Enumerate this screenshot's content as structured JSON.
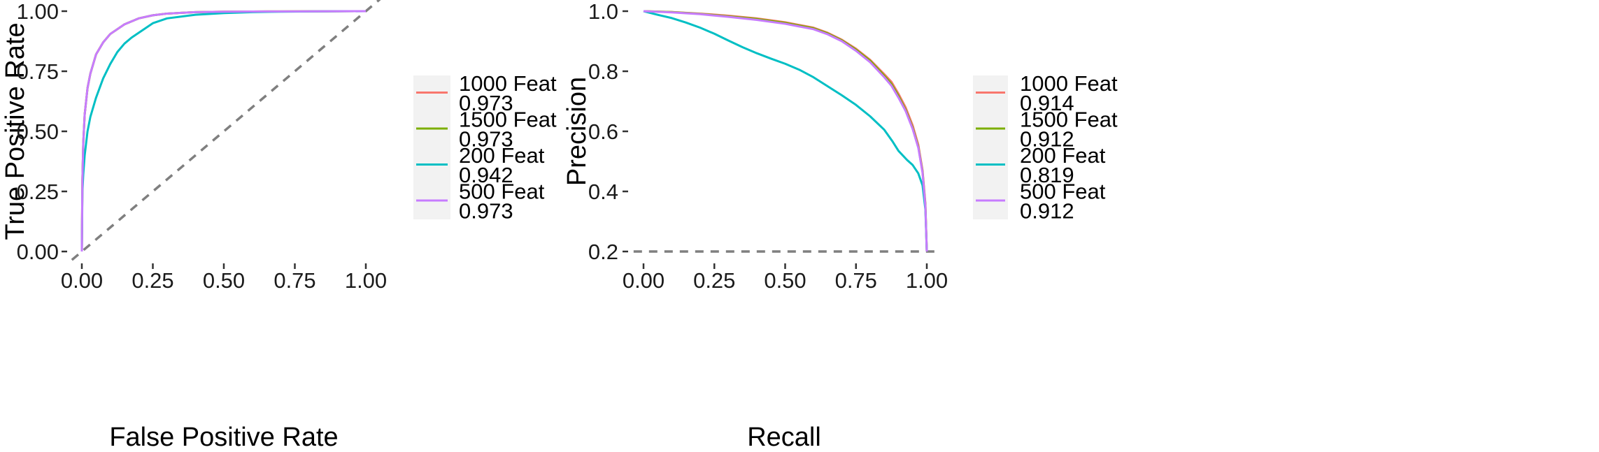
{
  "chart_data": [
    {
      "type": "line",
      "title": "",
      "xlabel": "False Positive Rate",
      "ylabel": "True Positive Rate",
      "xlim": [
        0,
        1
      ],
      "ylim": [
        0,
        1
      ],
      "x_ticks": [
        0,
        0.25,
        0.5,
        0.75,
        1
      ],
      "x_tick_labels": [
        "0.00",
        "0.25",
        "0.50",
        "0.75",
        "1.00"
      ],
      "y_ticks": [
        0,
        0.25,
        0.5,
        0.75,
        1
      ],
      "y_tick_labels": [
        "0.00",
        "0.25",
        "0.50",
        "0.75",
        "1.00"
      ],
      "grid": false,
      "legend_position": "right",
      "reference_line": {
        "style": "dashed",
        "color": "#7f7f7f",
        "points": [
          [
            -0.035,
            -0.035
          ],
          [
            1.05,
            1.05
          ]
        ]
      },
      "series": [
        {
          "name": "1000 Feat",
          "auc": "0.973",
          "color": "#f8766d",
          "points": [
            [
              0,
              0
            ],
            [
              0.002,
              0.3
            ],
            [
              0.005,
              0.45
            ],
            [
              0.01,
              0.57
            ],
            [
              0.02,
              0.68
            ],
            [
              0.03,
              0.74
            ],
            [
              0.05,
              0.82
            ],
            [
              0.075,
              0.87
            ],
            [
              0.1,
              0.905
            ],
            [
              0.15,
              0.945
            ],
            [
              0.2,
              0.97
            ],
            [
              0.25,
              0.983
            ],
            [
              0.3,
              0.99
            ],
            [
              0.4,
              0.996
            ],
            [
              0.5,
              0.998
            ],
            [
              0.7,
              0.999
            ],
            [
              1,
              1
            ]
          ]
        },
        {
          "name": "1500 Feat",
          "auc": "0.973",
          "color": "#7cae00",
          "points": [
            [
              0,
              0
            ],
            [
              0.002,
              0.3
            ],
            [
              0.005,
              0.45
            ],
            [
              0.01,
              0.57
            ],
            [
              0.02,
              0.68
            ],
            [
              0.03,
              0.74
            ],
            [
              0.05,
              0.82
            ],
            [
              0.075,
              0.87
            ],
            [
              0.1,
              0.905
            ],
            [
              0.15,
              0.945
            ],
            [
              0.2,
              0.97
            ],
            [
              0.25,
              0.983
            ],
            [
              0.3,
              0.99
            ],
            [
              0.4,
              0.996
            ],
            [
              0.5,
              0.998
            ],
            [
              0.7,
              0.999
            ],
            [
              1,
              1
            ]
          ]
        },
        {
          "name": "200 Feat",
          "auc": "0.942",
          "color": "#00bfc4",
          "points": [
            [
              0,
              0
            ],
            [
              0.002,
              0.25
            ],
            [
              0.005,
              0.32
            ],
            [
              0.01,
              0.4
            ],
            [
              0.02,
              0.5
            ],
            [
              0.03,
              0.56
            ],
            [
              0.05,
              0.64
            ],
            [
              0.075,
              0.72
            ],
            [
              0.1,
              0.78
            ],
            [
              0.125,
              0.83
            ],
            [
              0.15,
              0.865
            ],
            [
              0.175,
              0.89
            ],
            [
              0.2,
              0.91
            ],
            [
              0.25,
              0.95
            ],
            [
              0.3,
              0.97
            ],
            [
              0.4,
              0.985
            ],
            [
              0.5,
              0.992
            ],
            [
              0.6,
              0.996
            ],
            [
              0.7,
              0.998
            ],
            [
              0.8,
              0.999
            ],
            [
              1,
              1
            ]
          ]
        },
        {
          "name": "500 Feat",
          "auc": "0.973",
          "color": "#c77cff",
          "points": [
            [
              0,
              0
            ],
            [
              0.002,
              0.3
            ],
            [
              0.005,
              0.45
            ],
            [
              0.01,
              0.57
            ],
            [
              0.02,
              0.68
            ],
            [
              0.03,
              0.74
            ],
            [
              0.05,
              0.82
            ],
            [
              0.075,
              0.87
            ],
            [
              0.1,
              0.905
            ],
            [
              0.15,
              0.945
            ],
            [
              0.2,
              0.97
            ],
            [
              0.25,
              0.983
            ],
            [
              0.3,
              0.99
            ],
            [
              0.4,
              0.996
            ],
            [
              0.5,
              0.998
            ],
            [
              0.7,
              0.999
            ],
            [
              1,
              1
            ]
          ]
        }
      ]
    },
    {
      "type": "line",
      "title": "",
      "xlabel": "Recall",
      "ylabel": "Precision",
      "xlim": [
        0,
        1
      ],
      "ylim": [
        0.2,
        1
      ],
      "x_ticks": [
        0,
        0.25,
        0.5,
        0.75,
        1
      ],
      "x_tick_labels": [
        "0.00",
        "0.25",
        "0.50",
        "0.75",
        "1.00"
      ],
      "y_ticks": [
        0.2,
        0.4,
        0.6,
        0.8,
        1
      ],
      "y_tick_labels": [
        "0.2",
        "0.4",
        "0.6",
        "0.8",
        "1.0"
      ],
      "grid": false,
      "legend_position": "right",
      "reference_line": {
        "style": "dashed",
        "color": "#7f7f7f",
        "points": [
          [
            -0.035,
            0.2
          ],
          [
            1.035,
            0.2
          ]
        ]
      },
      "series": [
        {
          "name": "1000 Feat",
          "auc": "0.914",
          "color": "#f8766d",
          "points": [
            [
              0,
              1
            ],
            [
              0.1,
              0.997
            ],
            [
              0.2,
              0.992
            ],
            [
              0.3,
              0.985
            ],
            [
              0.4,
              0.976
            ],
            [
              0.5,
              0.963
            ],
            [
              0.6,
              0.945
            ],
            [
              0.65,
              0.928
            ],
            [
              0.7,
              0.905
            ],
            [
              0.75,
              0.875
            ],
            [
              0.8,
              0.838
            ],
            [
              0.85,
              0.79
            ],
            [
              0.875,
              0.765
            ],
            [
              0.9,
              0.725
            ],
            [
              0.925,
              0.68
            ],
            [
              0.95,
              0.62
            ],
            [
              0.97,
              0.555
            ],
            [
              0.985,
              0.47
            ],
            [
              0.995,
              0.36
            ],
            [
              1,
              0.2
            ]
          ]
        },
        {
          "name": "1500 Feat",
          "auc": "0.912",
          "color": "#7cae00",
          "points": [
            [
              0,
              1
            ],
            [
              0.1,
              0.997
            ],
            [
              0.2,
              0.991
            ],
            [
              0.3,
              0.983
            ],
            [
              0.4,
              0.974
            ],
            [
              0.5,
              0.961
            ],
            [
              0.6,
              0.943
            ],
            [
              0.65,
              0.926
            ],
            [
              0.7,
              0.903
            ],
            [
              0.75,
              0.872
            ],
            [
              0.8,
              0.835
            ],
            [
              0.85,
              0.785
            ],
            [
              0.875,
              0.758
            ],
            [
              0.9,
              0.718
            ],
            [
              0.925,
              0.672
            ],
            [
              0.95,
              0.612
            ],
            [
              0.97,
              0.548
            ],
            [
              0.985,
              0.465
            ],
            [
              0.995,
              0.355
            ],
            [
              1,
              0.2
            ]
          ]
        },
        {
          "name": "200 Feat",
          "auc": "0.819",
          "color": "#00bfc4",
          "points": [
            [
              0,
              1
            ],
            [
              0.05,
              0.988
            ],
            [
              0.1,
              0.977
            ],
            [
              0.15,
              0.962
            ],
            [
              0.2,
              0.945
            ],
            [
              0.25,
              0.925
            ],
            [
              0.3,
              0.902
            ],
            [
              0.35,
              0.88
            ],
            [
              0.4,
              0.86
            ],
            [
              0.45,
              0.842
            ],
            [
              0.5,
              0.825
            ],
            [
              0.55,
              0.805
            ],
            [
              0.6,
              0.78
            ],
            [
              0.65,
              0.75
            ],
            [
              0.7,
              0.72
            ],
            [
              0.75,
              0.688
            ],
            [
              0.8,
              0.65
            ],
            [
              0.85,
              0.605
            ],
            [
              0.88,
              0.565
            ],
            [
              0.9,
              0.535
            ],
            [
              0.93,
              0.505
            ],
            [
              0.95,
              0.488
            ],
            [
              0.97,
              0.46
            ],
            [
              0.985,
              0.42
            ],
            [
              0.995,
              0.34
            ],
            [
              1,
              0.2
            ]
          ]
        },
        {
          "name": "500 Feat",
          "auc": "0.912",
          "color": "#c77cff",
          "points": [
            [
              0,
              1
            ],
            [
              0.1,
              0.996
            ],
            [
              0.2,
              0.99
            ],
            [
              0.3,
              0.981
            ],
            [
              0.4,
              0.971
            ],
            [
              0.5,
              0.958
            ],
            [
              0.6,
              0.94
            ],
            [
              0.65,
              0.923
            ],
            [
              0.7,
              0.9
            ],
            [
              0.75,
              0.868
            ],
            [
              0.8,
              0.83
            ],
            [
              0.85,
              0.78
            ],
            [
              0.875,
              0.752
            ],
            [
              0.9,
              0.712
            ],
            [
              0.925,
              0.668
            ],
            [
              0.95,
              0.608
            ],
            [
              0.97,
              0.545
            ],
            [
              0.985,
              0.462
            ],
            [
              0.995,
              0.352
            ],
            [
              1,
              0.2
            ]
          ]
        }
      ]
    }
  ]
}
